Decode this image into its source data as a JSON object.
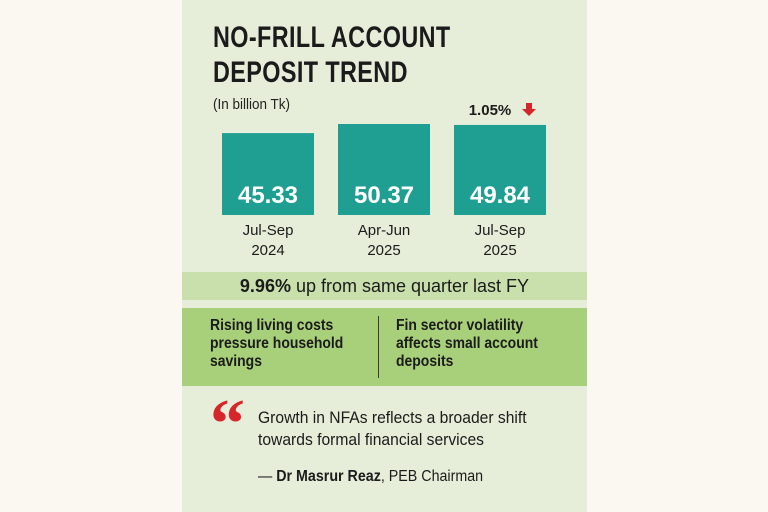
{
  "header": {
    "title_line1": "NO-FRILL ACCOUNT",
    "title_line2": "DEPOSIT TREND",
    "unit": "(In billion Tk)"
  },
  "colors": {
    "bar": "#1f9e92",
    "arrow": "#d7262b",
    "panel": "#e6eed9",
    "summary_band": "#c9e0ad",
    "factors_band": "#a8cf7a"
  },
  "chart_data": {
    "type": "bar",
    "title": "NO-FRILL ACCOUNT DEPOSIT TREND",
    "ylabel": "(In billion Tk)",
    "categories": [
      [
        "Jul-Sep",
        "2024"
      ],
      [
        "Apr-Jun",
        "2025"
      ],
      [
        "Jul-Sep",
        "2025"
      ]
    ],
    "values": [
      45.33,
      50.37,
      49.84
    ],
    "value_labels": [
      "45.33",
      "50.37",
      "49.84"
    ],
    "annotation": {
      "text": "1.05%",
      "category_index": 2,
      "direction": "down",
      "icon": "down-arrow-icon"
    },
    "ylim": [
      0,
      50.37
    ],
    "grid": false,
    "legend": "none"
  },
  "summary": {
    "highlight": "9.96%",
    "text": " up from same quarter last FY"
  },
  "factors": [
    "Rising living costs pressure household savings",
    "Fin sector volatility affects small account deposits"
  ],
  "quote": {
    "icon": "quote-mark-icon",
    "mark": "“",
    "text": "Growth in NFAs reflects a broader shift towards formal financial services",
    "author_prefix": "— ",
    "author_name": "Dr Masrur Reaz",
    "author_title": ", PEB Chairman"
  }
}
